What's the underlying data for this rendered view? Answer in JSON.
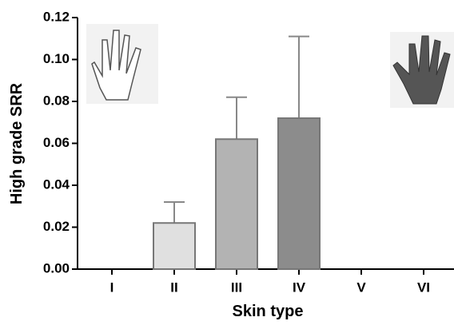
{
  "chart_data": {
    "type": "bar",
    "x_label": "Skin type",
    "y_label": "High grade SRR",
    "categories": [
      "I",
      "II",
      "III",
      "IV",
      "V",
      "VI"
    ],
    "values": [
      null,
      0.022,
      0.062,
      0.072,
      null,
      null
    ],
    "errors": [
      null,
      0.01,
      0.02,
      0.039,
      null,
      null
    ],
    "colors": [
      null,
      "#e0e0e0",
      "#b3b3b3",
      "#8c8c8c",
      null,
      null
    ],
    "ylim": [
      0,
      0.12
    ],
    "yticks": [
      {
        "value": 0,
        "label": "0.00"
      },
      {
        "value": 0.02,
        "label": "0.02"
      },
      {
        "value": 0.04,
        "label": "0.04"
      },
      {
        "value": 0.06,
        "label": "0.06"
      },
      {
        "value": 0.08,
        "label": "0.08"
      },
      {
        "value": 0.1,
        "label": "0.10"
      },
      {
        "value": 0.12,
        "label": "0.12"
      }
    ]
  }
}
